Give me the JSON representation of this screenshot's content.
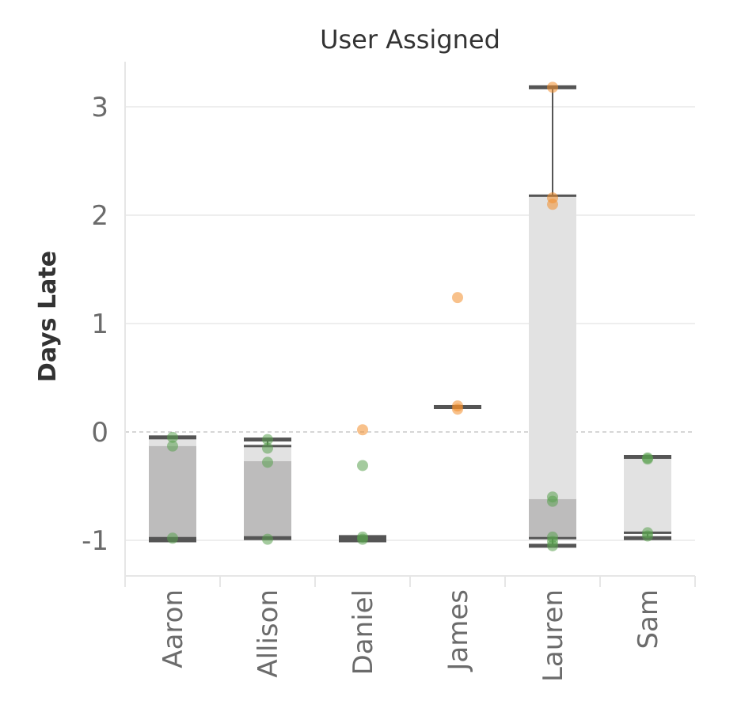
{
  "chart_data": {
    "type": "box-plot",
    "title": "User Assigned",
    "xlabel": "",
    "ylabel": "Days Late",
    "ylim": [
      -1.35,
      3.45
    ],
    "yticks": [
      -1,
      0,
      1,
      2,
      3
    ],
    "ytick_labels": [
      "-1",
      "0",
      "1",
      "2",
      "3"
    ],
    "grid": true,
    "reference_line": 0,
    "categories": [
      "Aaron",
      "Allison",
      "Daniel",
      "James",
      "Lauren",
      "Sam"
    ],
    "boxes": [
      {
        "name": "Aaron",
        "min": -1.0,
        "q1": -0.98,
        "median": -0.13,
        "q3": -0.05,
        "max": -0.05
      },
      {
        "name": "Allison",
        "min": -0.98,
        "q1": -0.98,
        "median": -0.27,
        "q3": -0.13,
        "max": -0.07
      },
      {
        "name": "Daniel",
        "min": -1.0,
        "q1": -1.0,
        "median": -0.97,
        "q3": -0.97,
        "max": -0.97
      },
      {
        "name": "James",
        "min": 0.23,
        "q1": 0.23,
        "median": 0.23,
        "q3": 0.23,
        "max": 0.23
      },
      {
        "name": "Lauren",
        "min": -1.05,
        "q1": -0.98,
        "median": -0.62,
        "q3": 2.18,
        "max": 3.18
      },
      {
        "name": "Sam",
        "min": -0.98,
        "q1": -0.93,
        "median": -0.93,
        "q3": -0.23,
        "max": -0.23
      }
    ],
    "points": [
      {
        "category": "Aaron",
        "y": -0.05,
        "group": "on-time"
      },
      {
        "category": "Aaron",
        "y": -0.13,
        "group": "on-time"
      },
      {
        "category": "Aaron",
        "y": -0.98,
        "group": "on-time"
      },
      {
        "category": "Allison",
        "y": -0.07,
        "group": "on-time"
      },
      {
        "category": "Allison",
        "y": -0.15,
        "group": "on-time"
      },
      {
        "category": "Allison",
        "y": -0.28,
        "group": "on-time"
      },
      {
        "category": "Allison",
        "y": -0.99,
        "group": "on-time"
      },
      {
        "category": "Daniel",
        "y": 0.02,
        "group": "late"
      },
      {
        "category": "Daniel",
        "y": -0.31,
        "group": "on-time"
      },
      {
        "category": "Daniel",
        "y": -0.97,
        "group": "on-time"
      },
      {
        "category": "Daniel",
        "y": -0.99,
        "group": "on-time"
      },
      {
        "category": "James",
        "y": 1.24,
        "group": "late"
      },
      {
        "category": "James",
        "y": 0.24,
        "group": "late"
      },
      {
        "category": "James",
        "y": 0.21,
        "group": "late"
      },
      {
        "category": "Lauren",
        "y": 3.18,
        "group": "late"
      },
      {
        "category": "Lauren",
        "y": 2.16,
        "group": "late"
      },
      {
        "category": "Lauren",
        "y": 2.1,
        "group": "late"
      },
      {
        "category": "Lauren",
        "y": -0.6,
        "group": "on-time"
      },
      {
        "category": "Lauren",
        "y": -0.64,
        "group": "on-time"
      },
      {
        "category": "Lauren",
        "y": -0.97,
        "group": "on-time"
      },
      {
        "category": "Lauren",
        "y": -1.01,
        "group": "on-time"
      },
      {
        "category": "Lauren",
        "y": -1.05,
        "group": "on-time"
      },
      {
        "category": "Sam",
        "y": -0.24,
        "group": "on-time"
      },
      {
        "category": "Sam",
        "y": -0.25,
        "group": "on-time"
      },
      {
        "category": "Sam",
        "y": -0.93,
        "group": "on-time"
      },
      {
        "category": "Sam",
        "y": -0.96,
        "group": "on-time"
      }
    ],
    "colors": {
      "late": "#f28e2b",
      "on_time": "#59a14f",
      "box_upper": "#e2e2e2",
      "box_lower": "#bdbcbc",
      "whisker": "#555555",
      "grid": "#eeeeee",
      "reference": "#c8c8c8"
    }
  }
}
